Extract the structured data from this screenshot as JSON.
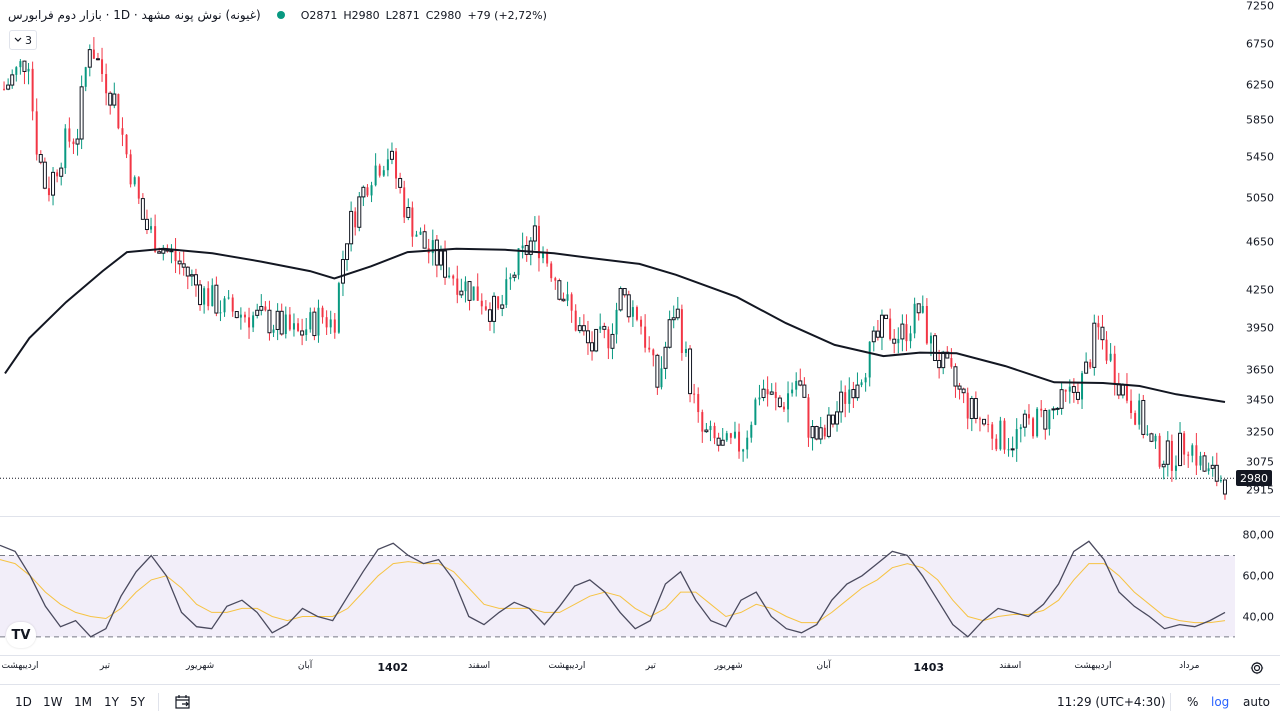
{
  "legend": {
    "title": "(غیونه) نوش پونه مشهد · 1D · بازار دوم فرابورس",
    "open": "O2871",
    "high": "H2980",
    "low": "L2871",
    "close": "C2980",
    "change": "+79 (+2,72%)",
    "collapse_count": "3"
  },
  "price_axis_ticks": [
    "7250",
    "6750",
    "6250",
    "5850",
    "5450",
    "5050",
    "4650",
    "4250",
    "3950",
    "3650",
    "3450",
    "3250",
    "3075",
    "2915"
  ],
  "price_ticks_values": [
    7250,
    6750,
    6250,
    5850,
    5450,
    5050,
    4650,
    4250,
    3950,
    3650,
    3450,
    3250,
    3075,
    2915
  ],
  "current_price": "2980",
  "rsi_axis_ticks": [
    "80,00",
    "60,00",
    "40,00"
  ],
  "time_axis": [
    {
      "label": "اردیبهشت",
      "pos": 0.012,
      "year": false
    },
    {
      "label": "تیر",
      "pos": 0.085,
      "year": false
    },
    {
      "label": "شهریور",
      "pos": 0.162,
      "year": false
    },
    {
      "label": "آبان",
      "pos": 0.247,
      "year": false
    },
    {
      "label": "1402",
      "pos": 0.318,
      "year": true
    },
    {
      "label": "اسفند",
      "pos": 0.388,
      "year": false
    },
    {
      "label": "اردیبهشت",
      "pos": 0.459,
      "year": false
    },
    {
      "label": "تیر",
      "pos": 0.527,
      "year": false
    },
    {
      "label": "شهریور",
      "pos": 0.59,
      "year": false
    },
    {
      "label": "آبان",
      "pos": 0.667,
      "year": false
    },
    {
      "label": "1403",
      "pos": 0.752,
      "year": true
    },
    {
      "label": "اسفند",
      "pos": 0.818,
      "year": false
    },
    {
      "label": "اردیبهشت",
      "pos": 0.885,
      "year": false
    },
    {
      "label": "مرداد",
      "pos": 0.963,
      "year": false
    }
  ],
  "bottom_bar": {
    "timeframes": [
      "1D",
      "1W",
      "1M",
      "1Y",
      "5Y"
    ],
    "clock": "11:29 (UTC+4:30)",
    "percent": "%",
    "log": "log",
    "auto": "auto"
  },
  "colors": {
    "up": "#089981",
    "down": "#f23645",
    "candle_body": "#131722",
    "ma": "#131722",
    "rsi": "#4a4a5e",
    "rsi_ma": "#f6c343",
    "rsi_band": "#7e57c2",
    "accent_log": "#2962ff"
  },
  "chart_data": [
    {
      "type": "candlestick",
      "scale": "log",
      "title": "",
      "ylim": [
        2850,
        7300
      ],
      "grid": false,
      "ma_series": {
        "name": "",
        "points": [
          [
            0,
            3630
          ],
          [
            0.02,
            3880
          ],
          [
            0.05,
            4150
          ],
          [
            0.08,
            4400
          ],
          [
            0.1,
            4560
          ],
          [
            0.13,
            4590
          ],
          [
            0.17,
            4550
          ],
          [
            0.21,
            4480
          ],
          [
            0.25,
            4400
          ],
          [
            0.27,
            4340
          ],
          [
            0.3,
            4440
          ],
          [
            0.33,
            4560
          ],
          [
            0.37,
            4590
          ],
          [
            0.41,
            4580
          ],
          [
            0.45,
            4550
          ],
          [
            0.48,
            4510
          ],
          [
            0.52,
            4460
          ],
          [
            0.55,
            4370
          ],
          [
            0.6,
            4190
          ],
          [
            0.64,
            3990
          ],
          [
            0.68,
            3830
          ],
          [
            0.72,
            3750
          ],
          [
            0.75,
            3775
          ],
          [
            0.78,
            3770
          ],
          [
            0.82,
            3680
          ],
          [
            0.86,
            3570
          ],
          [
            0.9,
            3565
          ],
          [
            0.93,
            3545
          ],
          [
            0.96,
            3490
          ],
          [
            1,
            3440
          ]
        ]
      },
      "close_path": [
        [
          0,
          6200
        ],
        [
          0.02,
          6600
        ],
        [
          0.025,
          5700
        ],
        [
          0.035,
          5100
        ],
        [
          0.05,
          5600
        ],
        [
          0.06,
          5700
        ],
        [
          0.07,
          6800
        ],
        [
          0.08,
          6400
        ],
        [
          0.09,
          6100
        ],
        [
          0.1,
          5500
        ],
        [
          0.115,
          4800
        ],
        [
          0.13,
          4600
        ],
        [
          0.145,
          4450
        ],
        [
          0.16,
          4250
        ],
        [
          0.18,
          4100
        ],
        [
          0.2,
          4050
        ],
        [
          0.22,
          4000
        ],
        [
          0.24,
          3900
        ],
        [
          0.26,
          4050
        ],
        [
          0.27,
          3980
        ],
        [
          0.28,
          4700
        ],
        [
          0.3,
          5300
        ],
        [
          0.315,
          5500
        ],
        [
          0.33,
          4900
        ],
        [
          0.345,
          4600
        ],
        [
          0.36,
          4450
        ],
        [
          0.375,
          4300
        ],
        [
          0.39,
          4200
        ],
        [
          0.405,
          4050
        ],
        [
          0.42,
          4450
        ],
        [
          0.435,
          4700
        ],
        [
          0.45,
          4400
        ],
        [
          0.465,
          4050
        ],
        [
          0.48,
          3800
        ],
        [
          0.495,
          3900
        ],
        [
          0.505,
          4200
        ],
        [
          0.52,
          4050
        ],
        [
          0.535,
          3550
        ],
        [
          0.55,
          4150
        ],
        [
          0.56,
          3650
        ],
        [
          0.57,
          3250
        ],
        [
          0.59,
          3150
        ],
        [
          0.605,
          3180
        ],
        [
          0.62,
          3550
        ],
        [
          0.635,
          3400
        ],
        [
          0.65,
          3600
        ],
        [
          0.66,
          3250
        ],
        [
          0.67,
          3200
        ],
        [
          0.69,
          3500
        ],
        [
          0.705,
          3700
        ],
        [
          0.72,
          3950
        ],
        [
          0.735,
          3900
        ],
        [
          0.75,
          4100
        ],
        [
          0.76,
          3800
        ],
        [
          0.775,
          3600
        ],
        [
          0.79,
          3400
        ],
        [
          0.81,
          3250
        ],
        [
          0.825,
          3200
        ],
        [
          0.84,
          3300
        ],
        [
          0.855,
          3350
        ],
        [
          0.87,
          3450
        ],
        [
          0.885,
          3600
        ],
        [
          0.895,
          3950
        ],
        [
          0.905,
          3750
        ],
        [
          0.915,
          3550
        ],
        [
          0.93,
          3350
        ],
        [
          0.94,
          3150
        ],
        [
          0.955,
          3100
        ],
        [
          0.97,
          3200
        ],
        [
          0.985,
          3000
        ],
        [
          1,
          2980
        ]
      ]
    },
    {
      "type": "line",
      "title": "",
      "ylim": [
        25,
        85
      ],
      "bands": [
        30,
        70
      ],
      "series": [
        {
          "name": "",
          "values": [
            75,
            72,
            60,
            45,
            35,
            38,
            30,
            34,
            50,
            62,
            70,
            60,
            42,
            35,
            34,
            45,
            48,
            42,
            32,
            36,
            44,
            40,
            38,
            50,
            62,
            73,
            76,
            70,
            66,
            68,
            58,
            40,
            36,
            42,
            47,
            44,
            36,
            45,
            55,
            58,
            52,
            42,
            34,
            38,
            56,
            62,
            48,
            38,
            35,
            48,
            52,
            40,
            34,
            32,
            36,
            48,
            56,
            60,
            66,
            72,
            70,
            60,
            48,
            36,
            30,
            38,
            44,
            42,
            40,
            46,
            56,
            72,
            77,
            68,
            52,
            45,
            40,
            34,
            36,
            35,
            38,
            42
          ]
        },
        {
          "name": "",
          "values": [
            68,
            66,
            60,
            52,
            46,
            42,
            40,
            39,
            44,
            52,
            58,
            60,
            54,
            46,
            42,
            42,
            44,
            44,
            40,
            38,
            40,
            40,
            40,
            44,
            52,
            60,
            66,
            67,
            66,
            66,
            62,
            54,
            46,
            44,
            44,
            44,
            42,
            42,
            46,
            50,
            52,
            50,
            44,
            40,
            44,
            52,
            52,
            46,
            40,
            42,
            46,
            44,
            40,
            37,
            37,
            42,
            48,
            54,
            58,
            64,
            66,
            64,
            58,
            48,
            40,
            38,
            40,
            41,
            41,
            43,
            48,
            58,
            66,
            66,
            60,
            52,
            46,
            40,
            38,
            37,
            37,
            38
          ]
        }
      ]
    }
  ]
}
